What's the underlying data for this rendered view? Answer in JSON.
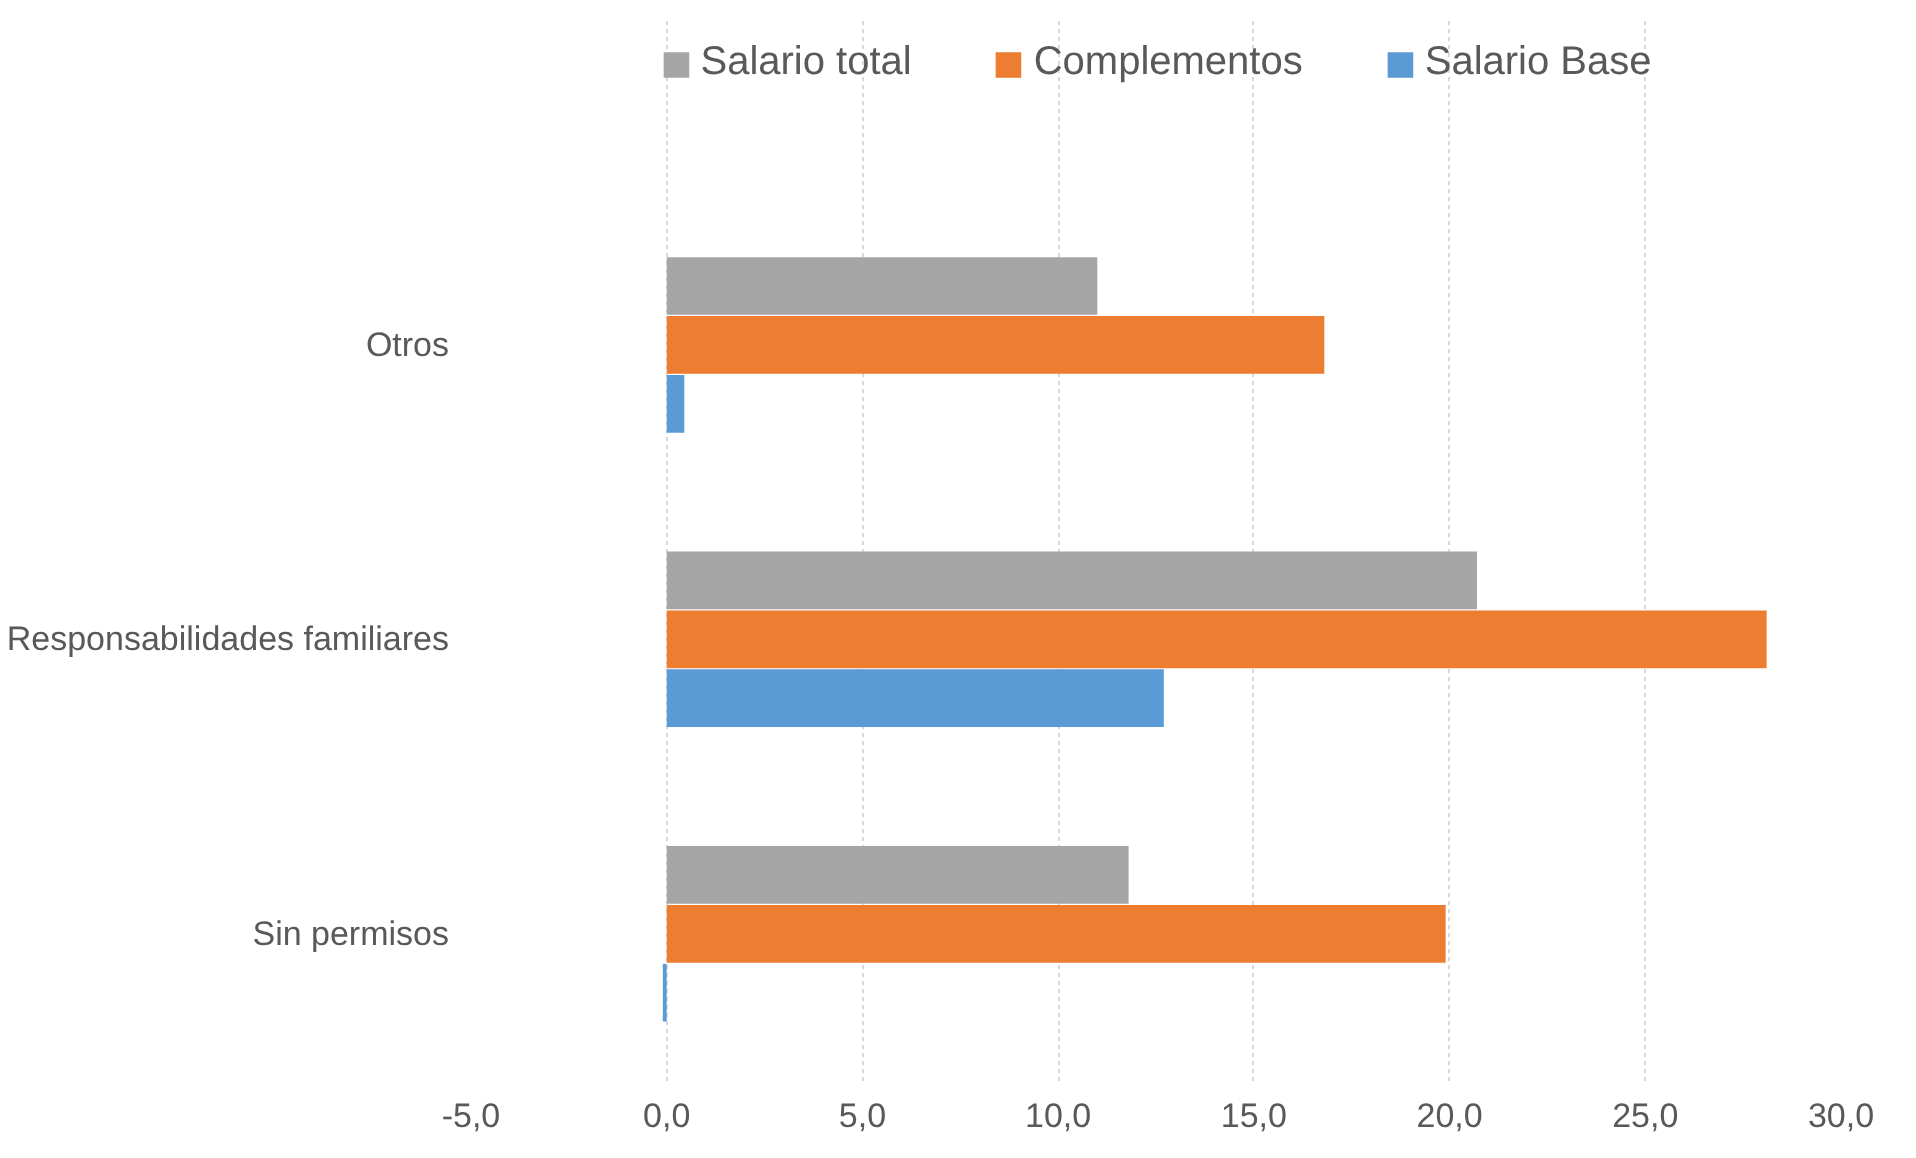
{
  "chart_data": {
    "type": "bar",
    "orientation": "horizontal",
    "categories": [
      "Otros",
      "Responsabilidades familiares",
      "Sin permisos"
    ],
    "series": [
      {
        "name": "Salario total",
        "color": "#a5a5a5",
        "values": [
          11.0,
          20.7,
          11.8
        ]
      },
      {
        "name": "Complementos",
        "color": "#ed7d31",
        "values": [
          16.8,
          28.1,
          19.9
        ]
      },
      {
        "name": "Salario Base",
        "color": "#5b9bd5",
        "values": [
          0.45,
          12.7,
          -0.1
        ]
      }
    ],
    "xlim": [
      -5,
      30
    ],
    "xticks": [
      {
        "value": -5,
        "label": "-5,0"
      },
      {
        "value": 0,
        "label": "0,0"
      },
      {
        "value": 5,
        "label": "5,0"
      },
      {
        "value": 10,
        "label": "10,0"
      },
      {
        "value": 15,
        "label": "15,0"
      },
      {
        "value": 20,
        "label": "20,0"
      },
      {
        "value": 25,
        "label": "25,0"
      },
      {
        "value": 30,
        "label": "30,0"
      }
    ],
    "grid": "x",
    "legend": "top"
  }
}
